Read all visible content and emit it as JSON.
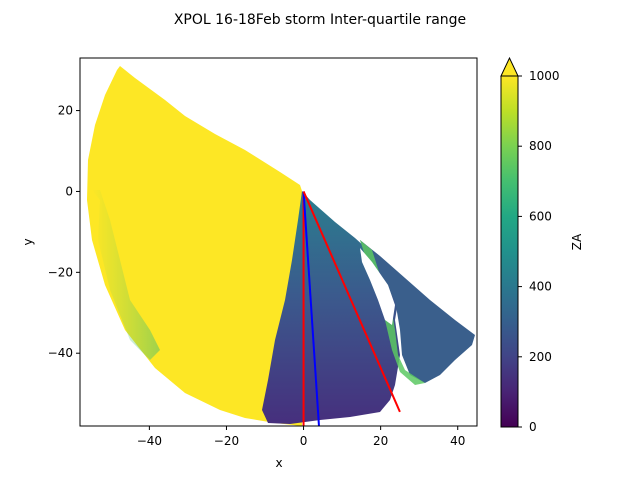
{
  "chart_data": {
    "type": "heatmap",
    "title": "XPOL 16-18Feb storm Inter-quartile range",
    "xlabel": "x",
    "ylabel": "y",
    "xlim": [
      -58,
      45
    ],
    "ylim": [
      -58,
      33
    ],
    "xticks": [
      -40,
      -20,
      0,
      20,
      40
    ],
    "xtick_labels": [
      "−40",
      "−20",
      "0",
      "20",
      "40"
    ],
    "yticks": [
      20,
      0,
      -20,
      -40
    ],
    "ytick_labels": [
      "20",
      "0",
      "−20",
      "−40"
    ],
    "colorbar": {
      "label": "ZA",
      "colormap": "viridis",
      "range": [
        0,
        1000
      ],
      "extend": "max",
      "ticks": [
        0,
        200,
        400,
        600,
        800,
        1000
      ],
      "tick_labels": [
        "0",
        "200",
        "400",
        "600",
        "800",
        "1000"
      ]
    },
    "field_description": {
      "origin": [
        0,
        0
      ],
      "saturated_region_value": 1000,
      "low_region_values": [
        100,
        450
      ]
    },
    "overlay_lines": [
      {
        "color": "#ff0000",
        "points": [
          [
            0,
            0
          ],
          [
            0,
            -58
          ]
        ]
      },
      {
        "color": "#0000ff",
        "points": [
          [
            0,
            0
          ],
          [
            4,
            -58
          ]
        ]
      },
      {
        "color": "#ff0000",
        "points": [
          [
            0,
            0
          ],
          [
            25,
            -54.5
          ]
        ]
      }
    ],
    "grid": false
  }
}
